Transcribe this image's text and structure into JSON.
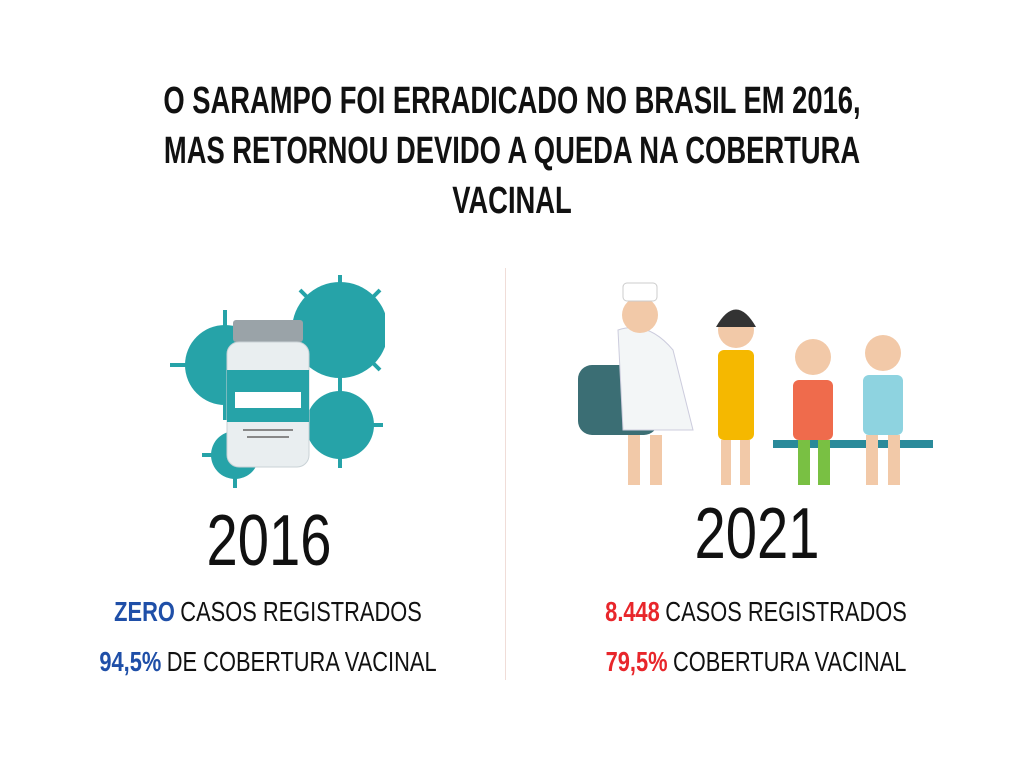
{
  "title_lines": [
    "O SARAMPO FOI ERRADICADO NO BRASIL EM 2016,",
    "MAS RETORNOU DEVIDO A QUEDA NA COBERTURA",
    "VACINAL"
  ],
  "left": {
    "year": "2016",
    "stats": [
      {
        "highlight": "ZERO",
        "text": "CASOS REGISTRADOS"
      },
      {
        "highlight": "94,5%",
        "text": "DE COBERTURA VACINAL"
      }
    ]
  },
  "right": {
    "year": "2021",
    "stats": [
      {
        "highlight": "8.448",
        "text": "CASOS REGISTRADOS"
      },
      {
        "highlight": "79,5%",
        "text": "COBERTURA VACINAL"
      }
    ]
  }
}
